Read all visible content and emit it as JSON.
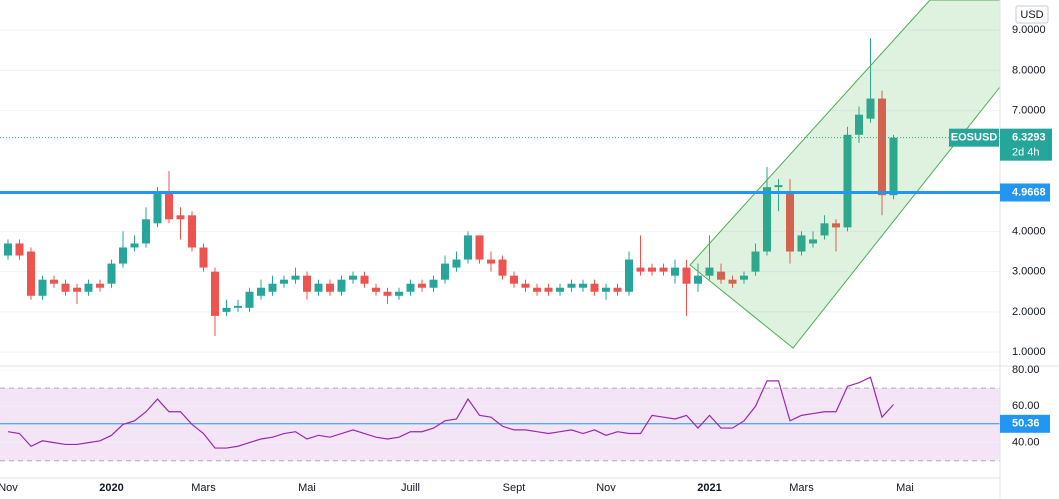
{
  "chart_data": [
    {
      "type": "candlestick",
      "currency": "USD",
      "symbol": "EOSUSD",
      "categories": [
        "Nov",
        null,
        null,
        null,
        null,
        null,
        null,
        null,
        null,
        "2020",
        null,
        null,
        null,
        null,
        null,
        null,
        null,
        "Mars",
        null,
        null,
        null,
        null,
        null,
        null,
        null,
        null,
        "Mai",
        null,
        null,
        null,
        null,
        null,
        null,
        null,
        null,
        "Juill",
        null,
        null,
        null,
        null,
        null,
        null,
        null,
        null,
        "Sept",
        null,
        null,
        null,
        null,
        null,
        null,
        null,
        "Nov",
        null,
        null,
        null,
        null,
        null,
        null,
        null,
        null,
        "2021",
        null,
        null,
        null,
        null,
        null,
        null,
        null,
        "Mars",
        null,
        null,
        null,
        null,
        null,
        null,
        null,
        null,
        "Mai",
        null,
        null,
        null,
        null,
        null,
        null,
        null,
        null
      ],
      "open": [
        3.4,
        3.7,
        3.5,
        2.4,
        2.8,
        2.7,
        2.6,
        2.5,
        2.7,
        2.7,
        3.2,
        3.6,
        3.7,
        4.2,
        5.0,
        4.4,
        4.4,
        3.6,
        3.0,
        2.0,
        2.1,
        2.1,
        2.4,
        2.5,
        2.7,
        2.8,
        2.9,
        2.5,
        2.7,
        2.5,
        2.8,
        2.9,
        2.6,
        2.5,
        2.4,
        2.5,
        2.7,
        2.6,
        2.8,
        3.1,
        3.3,
        3.9,
        3.3,
        3.3,
        2.9,
        2.7,
        2.6,
        2.6,
        2.5,
        2.6,
        2.6,
        2.7,
        2.5,
        2.6,
        2.5,
        3.1,
        3.1,
        3.1,
        2.9,
        3.1,
        2.7,
        2.9,
        3.0,
        2.8,
        2.8,
        3.0,
        3.5,
        5.1,
        5.0,
        3.5,
        3.7,
        3.9,
        4.2,
        4.1,
        6.4,
        6.8,
        7.3,
        4.9,
        null,
        null,
        null,
        null,
        null,
        null,
        null,
        null,
        null
      ],
      "high": [
        3.8,
        3.8,
        3.6,
        2.9,
        2.9,
        2.8,
        2.7,
        2.8,
        2.8,
        3.3,
        4.0,
        3.9,
        4.6,
        5.1,
        5.5,
        4.6,
        4.5,
        3.7,
        3.1,
        2.3,
        2.3,
        2.6,
        2.8,
        2.9,
        2.9,
        3.1,
        3.0,
        2.8,
        2.8,
        2.9,
        3.0,
        3.0,
        2.7,
        2.6,
        2.6,
        2.8,
        2.8,
        2.9,
        3.4,
        3.5,
        4.0,
        3.9,
        3.5,
        3.4,
        3.0,
        2.8,
        2.7,
        2.7,
        2.7,
        2.8,
        2.8,
        2.8,
        2.7,
        2.7,
        3.5,
        3.9,
        3.2,
        3.2,
        3.3,
        3.3,
        3.2,
        3.9,
        3.2,
        2.9,
        3.0,
        3.7,
        5.6,
        5.3,
        5.3,
        4.0,
        4.0,
        4.4,
        4.3,
        6.6,
        7.1,
        8.8,
        7.5,
        6.4,
        null,
        null,
        null,
        null,
        null,
        null,
        null,
        null,
        null
      ],
      "low": [
        3.3,
        3.3,
        2.3,
        2.3,
        2.6,
        2.4,
        2.2,
        2.4,
        2.5,
        2.6,
        3.1,
        3.5,
        3.6,
        4.1,
        4.2,
        3.8,
        3.5,
        3.0,
        1.4,
        1.9,
        2.0,
        2.0,
        2.3,
        2.4,
        2.6,
        2.7,
        2.3,
        2.4,
        2.4,
        2.4,
        2.7,
        2.6,
        2.4,
        2.2,
        2.3,
        2.4,
        2.5,
        2.5,
        2.7,
        3.0,
        3.2,
        3.2,
        3.0,
        2.8,
        2.6,
        2.5,
        2.4,
        2.4,
        2.4,
        2.5,
        2.5,
        2.4,
        2.3,
        2.4,
        2.4,
        2.9,
        2.9,
        2.9,
        2.7,
        1.9,
        2.5,
        2.8,
        2.7,
        2.6,
        2.7,
        2.9,
        3.4,
        4.5,
        3.2,
        3.4,
        3.6,
        3.8,
        3.5,
        4.0,
        6.2,
        6.7,
        4.4,
        4.8,
        null,
        null,
        null,
        null,
        null,
        null,
        null,
        null,
        null
      ],
      "close": [
        3.7,
        3.4,
        2.4,
        2.8,
        2.7,
        2.5,
        2.5,
        2.7,
        2.6,
        3.2,
        3.6,
        3.7,
        4.3,
        5.0,
        4.3,
        4.3,
        3.6,
        3.1,
        1.9,
        2.1,
        2.15,
        2.5,
        2.6,
        2.7,
        2.8,
        2.9,
        2.5,
        2.7,
        2.5,
        2.8,
        2.9,
        2.7,
        2.5,
        2.4,
        2.5,
        2.7,
        2.6,
        2.8,
        3.2,
        3.3,
        3.9,
        3.3,
        3.2,
        2.9,
        2.7,
        2.6,
        2.5,
        2.5,
        2.6,
        2.7,
        2.7,
        2.5,
        2.6,
        2.5,
        3.3,
        3.0,
        3.0,
        3.0,
        3.1,
        2.7,
        2.9,
        3.1,
        2.8,
        2.7,
        2.9,
        3.5,
        5.1,
        5.15,
        3.5,
        3.9,
        3.8,
        4.2,
        4.1,
        6.4,
        6.9,
        7.3,
        4.9,
        6.3293,
        null,
        null,
        null,
        null,
        null,
        null,
        null,
        null,
        null
      ],
      "up_color": "#26a69a",
      "down_color": "#ef5350",
      "ylim": [
        0.68,
        9.75
      ],
      "yticks": [
        {
          "value": 1,
          "label": "1.0000"
        },
        {
          "value": 2,
          "label": "2.0000"
        },
        {
          "value": 3,
          "label": "3.0000"
        },
        {
          "value": 4,
          "label": "4.0000"
        },
        {
          "value": 7,
          "label": "7.0000"
        },
        {
          "value": 8,
          "label": "8.0000"
        },
        {
          "value": 9,
          "label": "9.0000"
        }
      ],
      "grid": true,
      "last_price": 6.3293,
      "countdown": "2d 4h",
      "hline": 4.9668,
      "hline_color": "#2196f3"
    },
    {
      "type": "line",
      "values": [
        46,
        45,
        38,
        41,
        40,
        39,
        39,
        40,
        41,
        44,
        50,
        52,
        57,
        64,
        57,
        57,
        50,
        45,
        37,
        37,
        38,
        40,
        42,
        43,
        45,
        46,
        42,
        44,
        43,
        45,
        47,
        45,
        43,
        42,
        43,
        46,
        46,
        48,
        52,
        53,
        64,
        55,
        54,
        49,
        47,
        47,
        46,
        45,
        46,
        47,
        45,
        47,
        44,
        46,
        45,
        45,
        55,
        54,
        53,
        55,
        48,
        55,
        48,
        48,
        52,
        60,
        74,
        74,
        52,
        55,
        56,
        57,
        57,
        71,
        73,
        76,
        54,
        61,
        null,
        null,
        null,
        null,
        null,
        null,
        null,
        null,
        null
      ],
      "color": "#9c27b0",
      "ylim": [
        20.5,
        81.1
      ],
      "yticks": [
        {
          "value": 40,
          "label": "40.00"
        },
        {
          "value": 60,
          "label": "60.00"
        },
        {
          "value": 80,
          "label": "80.00"
        }
      ],
      "bands": [
        30,
        70
      ],
      "band_fill": "#f3e5f5",
      "ma": 50.36,
      "ma_color": "#2196f3"
    }
  ]
}
